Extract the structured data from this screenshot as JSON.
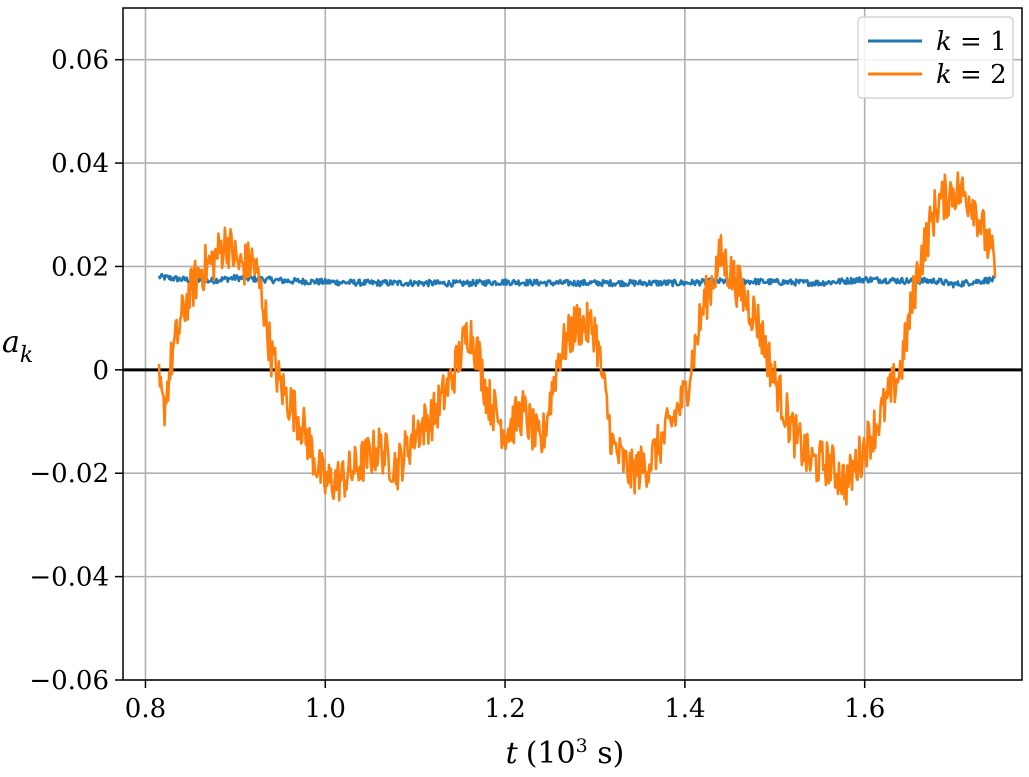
{
  "chart_data": {
    "type": "line",
    "xlabel": {
      "var": "t",
      "unit_pre": "(10",
      "unit_sup": "3",
      "unit_post": " s)"
    },
    "ylabel": {
      "var": "a",
      "sub": "k"
    },
    "xlim": [
      0.775,
      1.775
    ],
    "ylim": [
      -0.06,
      0.07
    ],
    "x_ticks": [
      0.8,
      1.0,
      1.2,
      1.4,
      1.6
    ],
    "x_tick_labels": [
      "0.8",
      "1.0",
      "1.2",
      "1.4",
      "1.6"
    ],
    "y_ticks": [
      -0.06,
      -0.04,
      -0.02,
      0,
      0.02,
      0.04,
      0.06
    ],
    "y_tick_labels": [
      "−0.06",
      "−0.04",
      "−0.02",
      "0",
      "0.02",
      "0.04",
      "0.06"
    ],
    "grid": true,
    "zero_line": true,
    "legend": "top-right",
    "series": [
      {
        "name": "k = 1",
        "label_var": "k",
        "label_val": "1",
        "color": "#1f77b4",
        "noise": 0.0006,
        "x": [
          0.815,
          0.84,
          0.87,
          0.9,
          0.93,
          0.96,
          1.0,
          1.05,
          1.1,
          1.15,
          1.2,
          1.25,
          1.3,
          1.35,
          1.4,
          1.45,
          1.5,
          1.55,
          1.6,
          1.65,
          1.68,
          1.7,
          1.72,
          1.745
        ],
        "y": [
          0.018,
          0.0175,
          0.0172,
          0.0178,
          0.0175,
          0.0172,
          0.017,
          0.0168,
          0.0168,
          0.0167,
          0.017,
          0.0168,
          0.0168,
          0.0168,
          0.0168,
          0.0172,
          0.017,
          0.0168,
          0.0175,
          0.0172,
          0.0172,
          0.0165,
          0.017,
          0.0175
        ]
      },
      {
        "name": "k = 2",
        "label_var": "k",
        "label_val": "2",
        "color": "#ff7f0e",
        "noise": 0.0045,
        "x": [
          0.815,
          0.82,
          0.83,
          0.845,
          0.86,
          0.875,
          0.89,
          0.905,
          0.92,
          0.93,
          0.94,
          0.95,
          0.96,
          0.975,
          0.99,
          1.0,
          1.02,
          1.04,
          1.06,
          1.08,
          1.1,
          1.12,
          1.14,
          1.16,
          1.17,
          1.18,
          1.2,
          1.22,
          1.24,
          1.26,
          1.28,
          1.3,
          1.32,
          1.34,
          1.36,
          1.38,
          1.4,
          1.42,
          1.44,
          1.46,
          1.48,
          1.5,
          1.52,
          1.54,
          1.56,
          1.58,
          1.6,
          1.62,
          1.64,
          1.66,
          1.68,
          1.7,
          1.72,
          1.745
        ],
        "y": [
          -0.003,
          -0.008,
          0.003,
          0.013,
          0.019,
          0.021,
          0.025,
          0.02,
          0.021,
          0.014,
          0.003,
          -0.003,
          -0.006,
          -0.011,
          -0.018,
          -0.022,
          -0.021,
          -0.018,
          -0.015,
          -0.019,
          -0.012,
          -0.009,
          -0.002,
          0.008,
          0.003,
          -0.005,
          -0.012,
          -0.008,
          -0.015,
          0.003,
          0.009,
          0.008,
          -0.015,
          -0.02,
          -0.018,
          -0.012,
          -0.005,
          0.012,
          0.022,
          0.016,
          0.01,
          -0.002,
          -0.012,
          -0.018,
          -0.018,
          -0.022,
          -0.015,
          -0.008,
          0.0,
          0.02,
          0.032,
          0.035,
          0.033,
          0.02
        ]
      }
    ]
  }
}
